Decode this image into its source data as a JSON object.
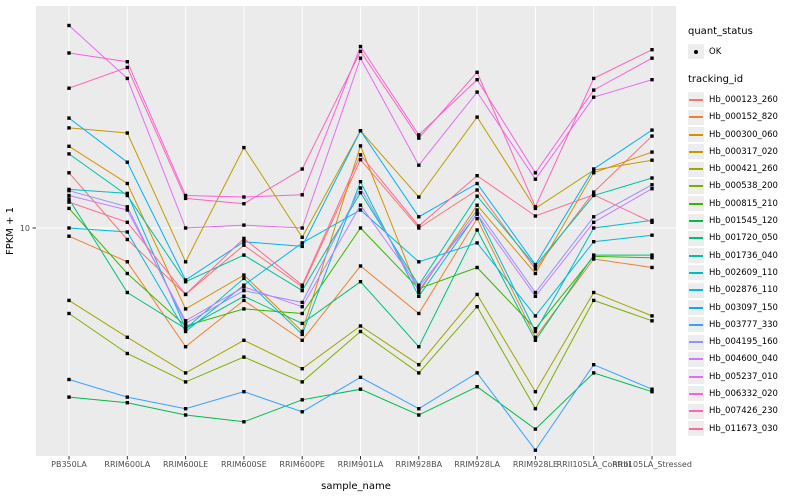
{
  "panel": {
    "panel_bg": "#EBEBEB",
    "grid_color": "#FFFFFF",
    "tick_text_color": "#4D4D4D",
    "axis_title_color": "#000000",
    "point_color": "#000000",
    "legend_key_bg": "#EDEDED"
  },
  "legend": {
    "quant_status": {
      "title": "quant_status",
      "items": [
        {
          "label": "OK",
          "symbol": "point"
        }
      ]
    },
    "tracking_id": {
      "title": "tracking_id"
    }
  },
  "chart_data": {
    "type": "line",
    "title": "",
    "xlabel": "sample_name",
    "ylabel": "FPKM + 1",
    "yscale": "log10",
    "ylim": [
      1,
      100
    ],
    "yticks": [
      10
    ],
    "ytick_labels": [
      "10"
    ],
    "grid": "on",
    "legend_position": "right",
    "x": [
      "PB350LA",
      "RRIM600LA",
      "RRIM600LE",
      "RRIM600SE",
      "RRIM600PE",
      "RRIM901LA",
      "RRIM928BA",
      "RRIM928LA",
      "RRIM928LE",
      "RRII105LA_Control",
      "RRII105LA_Stressed"
    ],
    "series": [
      {
        "name": "Hb_000123_260",
        "color": "#F8766D",
        "values": [
          17.5,
          8.9,
          5.1,
          8.4,
          5.5,
          20.0,
          10.0,
          14.7,
          6.6,
          14.4,
          25.4
        ]
      },
      {
        "name": "Hb_000152_820",
        "color": "#EA8331",
        "values": [
          9.2,
          7.1,
          3.0,
          4.8,
          3.2,
          6.8,
          4.2,
          11.0,
          3.3,
          7.3,
          6.7
        ]
      },
      {
        "name": "Hb_000300_060",
        "color": "#D89000",
        "values": [
          22.9,
          15.7,
          4.4,
          6.2,
          3.5,
          23.0,
          5.2,
          12.6,
          6.3,
          17.5,
          21.6
        ]
      },
      {
        "name": "Hb_000317_020",
        "color": "#C09B00",
        "values": [
          27.6,
          26.2,
          7.1,
          22.6,
          9.1,
          26.8,
          13.7,
          30.8,
          12.2,
          18.0,
          19.9
        ]
      },
      {
        "name": "Hb_000421_260",
        "color": "#A3A500",
        "values": [
          4.8,
          3.3,
          2.3,
          3.2,
          2.4,
          3.7,
          2.5,
          5.1,
          1.9,
          5.2,
          4.1
        ]
      },
      {
        "name": "Hb_000538_200",
        "color": "#7CAE00",
        "values": [
          4.2,
          2.8,
          2.1,
          2.7,
          2.1,
          3.5,
          2.3,
          4.5,
          1.6,
          4.8,
          3.9
        ]
      },
      {
        "name": "Hb_000815_210",
        "color": "#39B600",
        "values": [
          12.2,
          6.3,
          3.7,
          4.4,
          4.2,
          10.0,
          5.4,
          6.7,
          3.6,
          7.5,
          7.4
        ]
      },
      {
        "name": "Hb_001545_120",
        "color": "#00BB4E",
        "values": [
          1.8,
          1.7,
          1.5,
          1.4,
          1.75,
          1.95,
          1.5,
          2.0,
          1.3,
          2.3,
          1.9
        ]
      },
      {
        "name": "Hb_001720_050",
        "color": "#00BF7D",
        "values": [
          13.4,
          5.2,
          3.6,
          5.0,
          3.8,
          5.8,
          3.0,
          9.8,
          3.2,
          7.6,
          7.6
        ]
      },
      {
        "name": "Hb_001736_040",
        "color": "#00C1A3",
        "values": [
          21.2,
          13.9,
          5.8,
          7.6,
          5.3,
          14.3,
          5.6,
          13.8,
          6.8,
          13.9,
          16.6
        ]
      },
      {
        "name": "Hb_002609_110",
        "color": "#00BFC4",
        "values": [
          14.8,
          14.2,
          3.6,
          6.0,
          3.4,
          16.0,
          5.0,
          11.6,
          3.5,
          10.0,
          10.8
        ]
      },
      {
        "name": "Hb_002876_110",
        "color": "#00BAE0",
        "values": [
          10.0,
          9.6,
          3.5,
          5.6,
          8.6,
          12.0,
          7.1,
          8.6,
          4.1,
          8.7,
          9.3
        ]
      },
      {
        "name": "Hb_003097_150",
        "color": "#00B0F6",
        "values": [
          30.5,
          19.5,
          5.9,
          8.7,
          8.3,
          26.8,
          11.2,
          15.7,
          6.9,
          18.2,
          27.0
        ]
      },
      {
        "name": "Hb_003777_330",
        "color": "#35A2FF",
        "values": [
          2.15,
          1.8,
          1.6,
          1.9,
          1.55,
          2.2,
          1.6,
          2.3,
          1.05,
          2.5,
          1.95
        ]
      },
      {
        "name": "Hb_004195_160",
        "color": "#9590FF",
        "values": [
          14.6,
          12.4,
          3.8,
          5.3,
          4.7,
          15.0,
          5.3,
          12.0,
          5.2,
          11.2,
          15.5
        ]
      },
      {
        "name": "Hb_004600_040",
        "color": "#C77CFF",
        "values": [
          13.9,
          12.0,
          3.9,
          5.5,
          4.5,
          12.6,
          5.5,
          11.5,
          5.0,
          10.6,
          14.9
        ]
      },
      {
        "name": "Hb_005237_010",
        "color": "#E76BF3",
        "values": [
          78.0,
          45.6,
          10.0,
          10.3,
          10.0,
          56.0,
          18.9,
          39.7,
          16.4,
          37.7,
          45.0
        ]
      },
      {
        "name": "Hb_006332_020",
        "color": "#FA62DB",
        "values": [
          59.0,
          54.0,
          13.9,
          13.7,
          14.0,
          63.0,
          25.7,
          45.0,
          17.5,
          40.5,
          56.0
        ]
      },
      {
        "name": "Hb_007426_230",
        "color": "#FF62BC",
        "values": [
          41.3,
          51.0,
          13.5,
          12.8,
          18.2,
          60.0,
          24.9,
          48.5,
          12.4,
          45.6,
          61.0
        ]
      },
      {
        "name": "Hb_011673_030",
        "color": "#FF6A98",
        "values": [
          13.0,
          10.6,
          5.1,
          9.0,
          5.6,
          21.0,
          10.2,
          17.0,
          11.3,
          14.0,
          10.6
        ]
      }
    ]
  }
}
